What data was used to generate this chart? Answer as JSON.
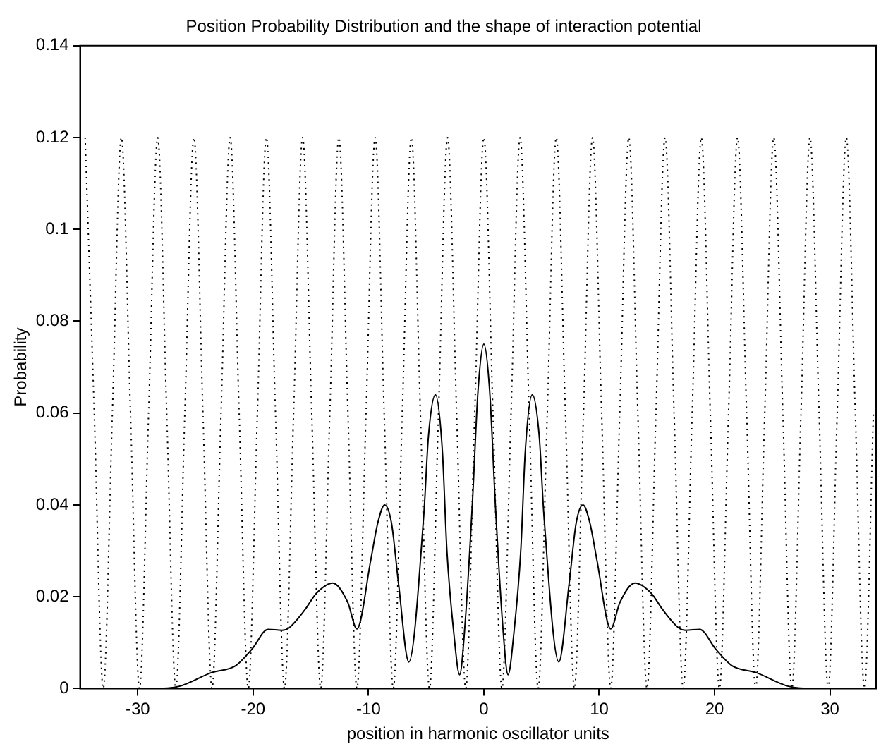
{
  "chart_data": {
    "type": "line",
    "title": "Position Probability Distribution and the shape of interaction potential",
    "xlabel": "position in harmonic oscillator units",
    "ylabel": "Probability",
    "xlim": [
      -35,
      34
    ],
    "xticks": [
      -30,
      -20,
      -10,
      0,
      10,
      20,
      30
    ],
    "ylim": [
      0,
      0.14
    ],
    "yticks": [
      0,
      0.02,
      0.04,
      0.06,
      0.08,
      0.1,
      0.12,
      0.14
    ],
    "grid": false,
    "legend": false,
    "marker": "none",
    "series": [
      {
        "color": "#000000",
        "line_style": "solid",
        "x": [
          -34,
          -28.8,
          -26.4,
          -23.6,
          -21.5,
          -20.1,
          -18.7,
          -17.5,
          -16.9,
          -15.5,
          -14.5,
          -13.1,
          -11.8,
          -11.0,
          -9.8,
          -9.2,
          -8.6,
          -8.0,
          -7.4,
          -6.5,
          -5.2,
          -4.8,
          -4.2,
          -3.6,
          -3.2,
          -2.6,
          -2.1,
          -1.6,
          -1.0,
          -0.5,
          0,
          0.5,
          1.0,
          1.6,
          2.1,
          2.6,
          3.2,
          3.6,
          4.2,
          4.8,
          5.2,
          6.5,
          7.4,
          8.0,
          8.6,
          9.2,
          9.8,
          11.0,
          11.8,
          13.1,
          14.5,
          15.5,
          16.9,
          17.5,
          18.7,
          20.1,
          21.5,
          23.6,
          26.4,
          28.8,
          34
        ],
        "values": [
          0,
          0,
          0.0005,
          0.0035,
          0.005,
          0.0086,
          0.0129,
          0.0127,
          0.0132,
          0.0172,
          0.0208,
          0.023,
          0.0188,
          0.013,
          0.028,
          0.036,
          0.04,
          0.036,
          0.023,
          0.0058,
          0.038,
          0.055,
          0.064,
          0.052,
          0.03,
          0.012,
          0.003,
          0.015,
          0.04,
          0.065,
          0.075,
          0.065,
          0.04,
          0.015,
          0.003,
          0.012,
          0.03,
          0.052,
          0.064,
          0.055,
          0.038,
          0.0058,
          0.023,
          0.036,
          0.04,
          0.036,
          0.028,
          0.013,
          0.0188,
          0.023,
          0.0208,
          0.0172,
          0.0132,
          0.0127,
          0.0129,
          0.0086,
          0.005,
          0.0035,
          0.0005,
          0,
          0
        ]
      },
      {
        "color": "#000000",
        "line_style": "dotted",
        "x": [
          -34.56,
          -33.77,
          -32.99,
          -32.2,
          -31.42,
          -30.63,
          -29.85,
          -29.06,
          -28.27,
          -27.49,
          -26.7,
          -25.92,
          -25.13,
          -24.35,
          -23.56,
          -22.78,
          -21.99,
          -21.21,
          -20.42,
          -19.63,
          -18.85,
          -18.06,
          -17.28,
          -16.49,
          -15.71,
          -14.92,
          -14.14,
          -13.35,
          -12.57,
          -11.78,
          -11,
          -10.21,
          -9.42,
          -8.64,
          -7.85,
          -7.07,
          -6.28,
          -5.5,
          -4.71,
          -3.93,
          -3.14,
          -2.36,
          -1.57,
          -0.79,
          0,
          0.79,
          1.57,
          2.36,
          3.14,
          3.93,
          4.71,
          5.5,
          6.28,
          7.07,
          7.85,
          8.64,
          9.42,
          10.21,
          11,
          11.78,
          12.57,
          13.35,
          14.14,
          14.92,
          15.71,
          16.49,
          17.28,
          18.06,
          18.85,
          19.63,
          20.42,
          21.21,
          21.99,
          22.78,
          23.56,
          24.35,
          25.13,
          25.92,
          26.7,
          27.49,
          28.27,
          29.06,
          29.85,
          30.63,
          31.42,
          32.2,
          32.99,
          33.77
        ],
        "values": [
          0.12,
          0.06,
          0,
          0.06,
          0.12,
          0.06,
          0,
          0.06,
          0.12,
          0.06,
          0,
          0.06,
          0.12,
          0.06,
          0,
          0.06,
          0.12,
          0.06,
          0,
          0.06,
          0.12,
          0.06,
          0,
          0.06,
          0.12,
          0.06,
          0,
          0.06,
          0.12,
          0.06,
          0,
          0.06,
          0.12,
          0.06,
          0,
          0.06,
          0.12,
          0.06,
          0,
          0.06,
          0.12,
          0.06,
          0,
          0.06,
          0.12,
          0.06,
          0,
          0.06,
          0.12,
          0.06,
          0,
          0.06,
          0.12,
          0.06,
          0,
          0.06,
          0.12,
          0.06,
          0,
          0.06,
          0.12,
          0.06,
          0,
          0.06,
          0.12,
          0.06,
          0,
          0.06,
          0.12,
          0.06,
          0,
          0.06,
          0.12,
          0.06,
          0,
          0.06,
          0.12,
          0.06,
          0,
          0.06,
          0.12,
          0.06,
          0,
          0.06,
          0.12,
          0.06,
          0,
          0.06
        ]
      }
    ]
  }
}
